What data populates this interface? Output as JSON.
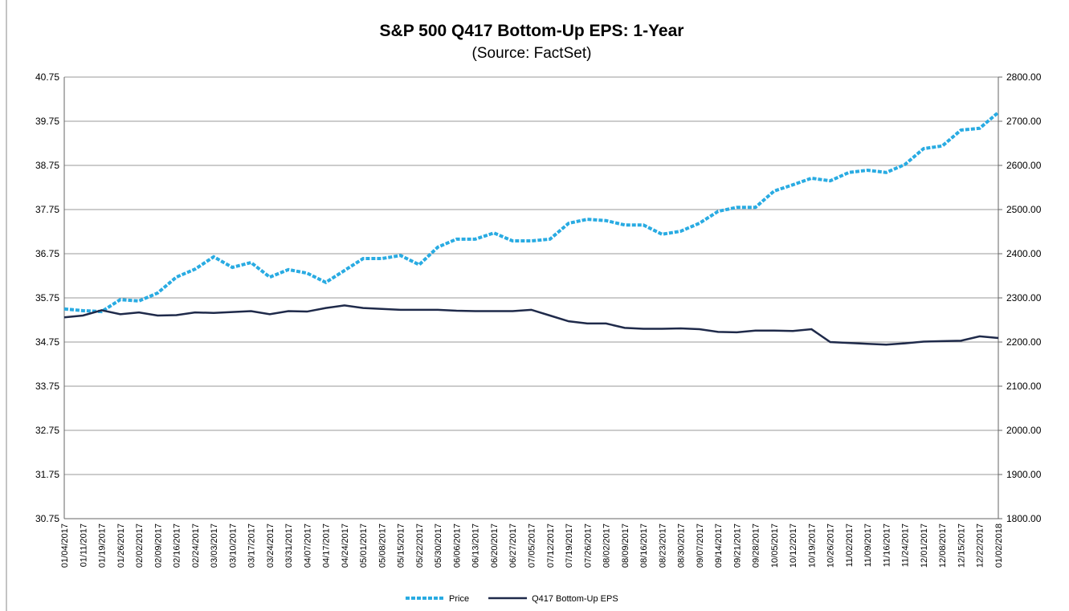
{
  "chart_data": {
    "type": "line",
    "title": "S&P 500 Q417 Bottom-Up EPS: 1-Year",
    "subtitle": "(Source: FactSet)",
    "categories": [
      "01/04/2017",
      "01/11/2017",
      "01/19/2017",
      "01/26/2017",
      "02/02/2017",
      "02/09/2017",
      "02/16/2017",
      "02/24/2017",
      "03/03/2017",
      "03/10/2017",
      "03/17/2017",
      "03/24/2017",
      "03/31/2017",
      "04/07/2017",
      "04/17/2017",
      "04/24/2017",
      "05/01/2017",
      "05/08/2017",
      "05/15/2017",
      "05/22/2017",
      "05/30/2017",
      "06/06/2017",
      "06/13/2017",
      "06/20/2017",
      "06/27/2017",
      "07/05/2017",
      "07/12/2017",
      "07/19/2017",
      "07/26/2017",
      "08/02/2017",
      "08/09/2017",
      "08/16/2017",
      "08/23/2017",
      "08/30/2017",
      "09/07/2017",
      "09/14/2017",
      "09/21/2017",
      "09/28/2017",
      "10/05/2017",
      "10/12/2017",
      "10/19/2017",
      "10/26/2017",
      "11/02/2017",
      "11/09/2017",
      "11/16/2017",
      "11/24/2017",
      "12/01/2017",
      "12/08/2017",
      "12/15/2017",
      "12/22/2017",
      "01/02/2018"
    ],
    "series": [
      {
        "name": "Price",
        "color": "#29abe2",
        "axis": "y2",
        "dashed": true,
        "values": [
          2275,
          2271,
          2269,
          2296,
          2293,
          2311,
          2347,
          2365,
          2393,
          2369,
          2380,
          2347,
          2364,
          2356,
          2335,
          2362,
          2389,
          2389,
          2396,
          2375,
          2415,
          2433,
          2433,
          2447,
          2429,
          2429,
          2433,
          2469,
          2478,
          2475,
          2465,
          2465,
          2444,
          2451,
          2469,
          2496,
          2505,
          2505,
          2542,
          2556,
          2571,
          2565,
          2584,
          2589,
          2584,
          2602,
          2638,
          2644,
          2680,
          2684,
          2720
        ]
      },
      {
        "name": "Q417 Bottom-Up EPS",
        "color": "#1f2a4a",
        "values": [
          35.31,
          35.35,
          35.47,
          35.38,
          35.42,
          35.35,
          35.36,
          35.42,
          35.41,
          35.43,
          35.45,
          35.38,
          35.45,
          35.44,
          35.52,
          35.58,
          35.52,
          35.5,
          35.48,
          35.48,
          35.48,
          35.46,
          35.45,
          35.45,
          35.45,
          35.48,
          35.35,
          35.22,
          35.17,
          35.17,
          35.07,
          35.05,
          35.05,
          35.06,
          35.04,
          34.98,
          34.97,
          35.01,
          35.01,
          35.0,
          35.04,
          34.75,
          34.73,
          34.71,
          34.69,
          34.72,
          34.76,
          34.77,
          34.78,
          34.88,
          34.84
        ]
      }
    ],
    "ylim": [
      30.75,
      40.75
    ],
    "yticks": [
      30.75,
      31.75,
      32.75,
      33.75,
      34.75,
      35.75,
      36.75,
      37.75,
      38.75,
      39.75,
      40.75
    ],
    "y2lim": [
      1800,
      2800
    ],
    "y2ticks": [
      {
        "value": 1800,
        "label": "1800.00"
      },
      {
        "value": 1900,
        "label": "1900.00"
      },
      {
        "value": 2000,
        "label": "2000.00"
      },
      {
        "value": 2100,
        "label": "2100.00"
      },
      {
        "value": 2200,
        "label": "2200.00"
      },
      {
        "value": 2300,
        "label": "2300.00"
      },
      {
        "value": 2400,
        "label": "2400.00"
      },
      {
        "value": 2500,
        "label": "2500.00"
      },
      {
        "value": 2600,
        "label": "2600.00"
      },
      {
        "value": 2700,
        "label": "2700.00"
      },
      {
        "value": 2800,
        "label": "2800.00"
      }
    ],
    "grid": true,
    "legend": "bottom"
  }
}
